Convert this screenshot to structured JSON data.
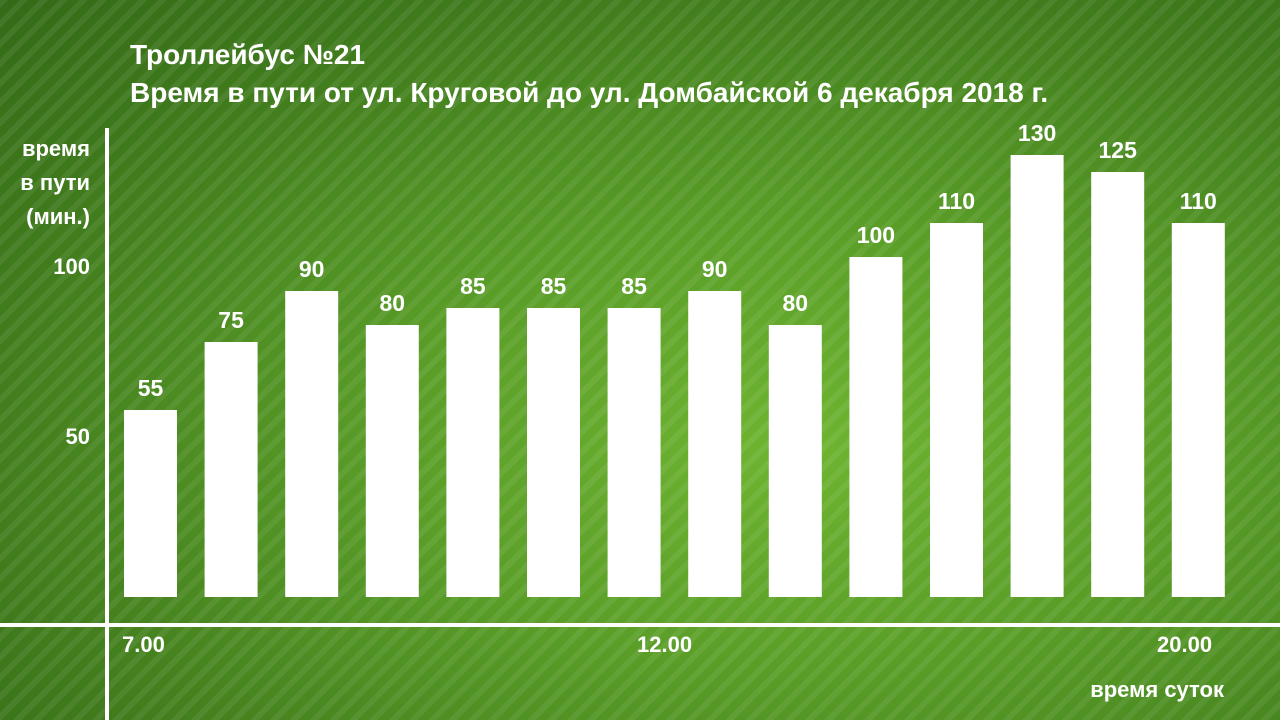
{
  "header": {
    "title": "Троллейбус №21",
    "subtitle": "Время в пути от ул. Круговой до ул. Домбайской 6 декабря 2018 г."
  },
  "chart_data": {
    "type": "bar",
    "title": "Троллейбус №21",
    "subtitle": "Время в пути от ул. Круговой до ул. Домбайской 6 декабря 2018 г.",
    "ylabel_lines": [
      "время",
      "в пути",
      "(мин.)"
    ],
    "xlabel": "время суток",
    "y_ticks": [
      "100",
      "50"
    ],
    "x_ticks": [
      "7.00",
      "12.00",
      "20.00"
    ],
    "values": [
      55,
      75,
      90,
      80,
      85,
      85,
      85,
      90,
      80,
      100,
      110,
      130,
      125,
      110
    ],
    "labels": [
      "55",
      "75",
      "90",
      "80",
      "85",
      "85",
      "85",
      "90",
      "80",
      "100",
      "110",
      "130",
      "125",
      "110"
    ],
    "grid": false,
    "colors": {
      "bar": "#ffffff",
      "axis": "#ffffff",
      "text": "#ffffff"
    }
  }
}
